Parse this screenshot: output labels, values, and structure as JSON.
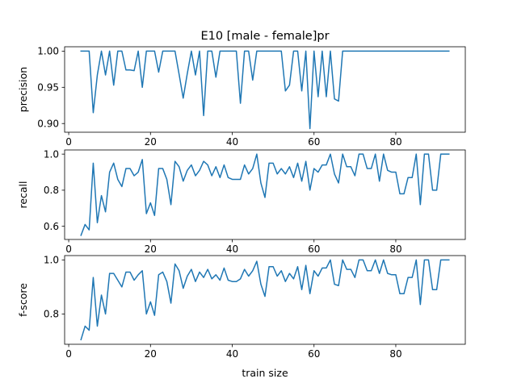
{
  "figure": {
    "title": "E10 [male - female]pr",
    "xlabel": "train size",
    "line_color": "#1f77b4"
  },
  "chart_data": [
    {
      "type": "line",
      "ylabel": "precision",
      "xlim": [
        -1,
        97
      ],
      "ylim": [
        0.888,
        1.006
      ],
      "xticks": [
        0,
        20,
        40,
        60,
        80
      ],
      "xtick_labels": [
        "0",
        "20",
        "40",
        "60",
        "80"
      ],
      "yticks": [
        0.9,
        0.95,
        1.0
      ],
      "ytick_labels": [
        "0.90",
        "0.95",
        "1.00"
      ],
      "x": [
        3,
        4,
        5,
        6,
        7,
        8,
        9,
        10,
        11,
        12,
        13,
        14,
        15,
        16,
        17,
        18,
        19,
        20,
        21,
        22,
        23,
        24,
        25,
        26,
        27,
        28,
        29,
        30,
        31,
        32,
        33,
        34,
        35,
        36,
        37,
        38,
        39,
        40,
        41,
        42,
        43,
        44,
        45,
        46,
        47,
        48,
        49,
        50,
        51,
        52,
        53,
        54,
        55,
        56,
        57,
        58,
        59,
        60,
        61,
        62,
        63,
        64,
        65,
        66,
        67,
        68,
        69,
        70,
        71,
        72,
        73,
        74,
        75,
        76,
        77,
        78,
        79,
        80,
        81,
        82,
        83,
        84,
        85,
        86,
        87,
        88,
        89,
        90,
        91,
        92,
        93
      ],
      "y": [
        1.0,
        1.0,
        1.0,
        0.915,
        0.967,
        1.0,
        0.967,
        1.0,
        0.953,
        1.0,
        1.0,
        0.974,
        0.974,
        0.973,
        1.0,
        0.95,
        1.0,
        1.0,
        1.0,
        0.971,
        1.0,
        1.0,
        1.0,
        1.0,
        0.968,
        0.935,
        0.969,
        1.0,
        0.967,
        1.0,
        0.911,
        1.0,
        1.0,
        0.964,
        1.0,
        1.0,
        1.0,
        1.0,
        1.0,
        0.928,
        1.0,
        1.0,
        0.96,
        1.0,
        1.0,
        1.0,
        1.0,
        1.0,
        1.0,
        1.0,
        0.945,
        0.953,
        1.0,
        1.0,
        0.945,
        1.0,
        0.893,
        1.0,
        0.937,
        1.0,
        0.937,
        1.0,
        0.934,
        0.931,
        1.0,
        1.0,
        1.0,
        1.0,
        1.0,
        1.0,
        1.0,
        1.0,
        1.0,
        1.0,
        1.0,
        1.0,
        1.0,
        1.0,
        1.0,
        1.0,
        1.0,
        1.0,
        1.0,
        1.0,
        1.0,
        1.0,
        1.0,
        1.0,
        1.0,
        1.0,
        1.0
      ]
    },
    {
      "type": "line",
      "ylabel": "recall",
      "xlim": [
        -1,
        97
      ],
      "ylim": [
        0.527,
        1.023
      ],
      "xticks": [
        0,
        20,
        40,
        60,
        80
      ],
      "xtick_labels": [
        "0",
        "20",
        "40",
        "60",
        "80"
      ],
      "yticks": [
        0.6,
        0.8,
        1.0
      ],
      "ytick_labels": [
        "0.6",
        "0.8",
        "1.0"
      ],
      "x": [
        3,
        4,
        5,
        6,
        7,
        8,
        9,
        10,
        11,
        12,
        13,
        14,
        15,
        16,
        17,
        18,
        19,
        20,
        21,
        22,
        23,
        24,
        25,
        26,
        27,
        28,
        29,
        30,
        31,
        32,
        33,
        34,
        35,
        36,
        37,
        38,
        39,
        40,
        41,
        42,
        43,
        44,
        45,
        46,
        47,
        48,
        49,
        50,
        51,
        52,
        53,
        54,
        55,
        56,
        57,
        58,
        59,
        60,
        61,
        62,
        63,
        64,
        65,
        66,
        67,
        68,
        69,
        70,
        71,
        72,
        73,
        74,
        75,
        76,
        77,
        78,
        79,
        80,
        81,
        82,
        83,
        84,
        85,
        86,
        87,
        88,
        89,
        90,
        91,
        92,
        93
      ],
      "y": [
        0.55,
        0.61,
        0.58,
        0.95,
        0.62,
        0.77,
        0.68,
        0.9,
        0.95,
        0.86,
        0.82,
        0.92,
        0.92,
        0.88,
        0.9,
        0.97,
        0.67,
        0.73,
        0.66,
        0.92,
        0.92,
        0.86,
        0.72,
        0.96,
        0.93,
        0.85,
        0.91,
        0.94,
        0.88,
        0.91,
        0.96,
        0.94,
        0.88,
        0.93,
        0.87,
        0.94,
        0.87,
        0.86,
        0.86,
        0.86,
        0.94,
        0.89,
        0.92,
        1.0,
        0.84,
        0.76,
        0.95,
        0.95,
        0.89,
        0.92,
        0.89,
        0.93,
        0.87,
        0.95,
        0.85,
        0.96,
        0.8,
        0.92,
        0.9,
        0.94,
        0.94,
        1.0,
        0.89,
        0.84,
        1.0,
        0.93,
        0.93,
        0.88,
        1.0,
        1.0,
        0.92,
        0.92,
        1.0,
        0.85,
        1.0,
        0.91,
        0.9,
        0.9,
        0.78,
        0.78,
        0.87,
        0.87,
        1.0,
        0.72,
        1.0,
        1.0,
        0.8,
        0.8,
        1.0,
        1.0,
        1.0
      ]
    },
    {
      "type": "line",
      "ylabel": "f-score",
      "xlim": [
        -1,
        97
      ],
      "ylim": [
        0.688,
        1.016
      ],
      "xticks": [
        0,
        20,
        40,
        60,
        80
      ],
      "xtick_labels": [
        "0",
        "20",
        "40",
        "60",
        "80"
      ],
      "yticks": [
        0.8,
        1.0
      ],
      "ytick_labels": [
        "0.8",
        "1.0"
      ],
      "x": [
        3,
        4,
        5,
        6,
        7,
        8,
        9,
        10,
        11,
        12,
        13,
        14,
        15,
        16,
        17,
        18,
        19,
        20,
        21,
        22,
        23,
        24,
        25,
        26,
        27,
        28,
        29,
        30,
        31,
        32,
        33,
        34,
        35,
        36,
        37,
        38,
        39,
        40,
        41,
        42,
        43,
        44,
        45,
        46,
        47,
        48,
        49,
        50,
        51,
        52,
        53,
        54,
        55,
        56,
        57,
        58,
        59,
        60,
        61,
        62,
        63,
        64,
        65,
        66,
        67,
        68,
        69,
        70,
        71,
        72,
        73,
        74,
        75,
        76,
        77,
        78,
        79,
        80,
        81,
        82,
        83,
        84,
        85,
        86,
        87,
        88,
        89,
        90,
        91,
        92,
        93
      ],
      "y": [
        0.705,
        0.755,
        0.74,
        0.935,
        0.755,
        0.87,
        0.8,
        0.95,
        0.95,
        0.925,
        0.9,
        0.955,
        0.955,
        0.925,
        0.945,
        0.96,
        0.8,
        0.845,
        0.795,
        0.945,
        0.955,
        0.92,
        0.84,
        0.985,
        0.96,
        0.895,
        0.94,
        0.965,
        0.92,
        0.955,
        0.935,
        0.965,
        0.93,
        0.945,
        0.925,
        0.97,
        0.925,
        0.92,
        0.92,
        0.93,
        0.965,
        0.94,
        0.96,
        0.995,
        0.91,
        0.865,
        0.975,
        0.975,
        0.94,
        0.96,
        0.92,
        0.95,
        0.93,
        0.975,
        0.89,
        0.98,
        0.875,
        0.96,
        0.94,
        0.97,
        0.97,
        1.0,
        0.91,
        0.905,
        1.0,
        0.965,
        0.965,
        0.935,
        1.0,
        1.0,
        0.96,
        0.96,
        1.0,
        0.95,
        1.0,
        0.95,
        0.945,
        0.945,
        0.875,
        0.875,
        0.935,
        0.935,
        1.0,
        0.835,
        1.0,
        1.0,
        0.89,
        0.89,
        1.0,
        1.0,
        1.0
      ]
    }
  ]
}
